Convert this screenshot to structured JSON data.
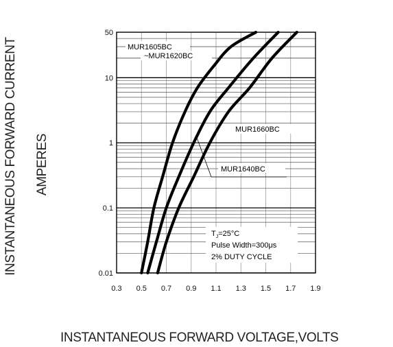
{
  "chart_data": {
    "type": "line",
    "xlabel": "INSTANTANEOUS FORWARD VOLTAGE,VOLTS",
    "ylabel_line1": "INSTANTANEOUS FORWARD CURRENT",
    "ylabel_line2": "AMPERES",
    "x_scale": "linear",
    "y_scale": "log",
    "xlim": [
      0.3,
      1.9
    ],
    "ylim": [
      0.01,
      50
    ],
    "x_ticks": [
      "0.3",
      "0.5",
      "0.7",
      "0.9",
      "1.1",
      "1.3",
      "1.5",
      "1.7",
      "1.9"
    ],
    "y_ticks": [
      "0.01",
      "0.1",
      "1",
      "10",
      "50"
    ],
    "grid": true,
    "series": [
      {
        "name": "MUR1605BC\n~MUR1620BC",
        "x": [
          0.5,
          0.55,
          0.6,
          0.67,
          0.75,
          0.85,
          0.95,
          1.08,
          1.22,
          1.42
        ],
        "y": [
          0.01,
          0.03,
          0.1,
          0.3,
          1,
          3,
          7,
          15,
          30,
          50
        ]
      },
      {
        "name": "MUR1640BC",
        "x": [
          0.55,
          0.62,
          0.7,
          0.8,
          0.92,
          1.05,
          1.2,
          1.4,
          1.6
        ],
        "y": [
          0.01,
          0.03,
          0.1,
          0.3,
          1,
          3,
          7,
          20,
          50
        ]
      },
      {
        "name": "MUR1660BC",
        "x": [
          0.63,
          0.7,
          0.8,
          0.92,
          1.05,
          1.2,
          1.37,
          1.55,
          1.75
        ],
        "y": [
          0.01,
          0.03,
          0.1,
          0.3,
          1,
          3,
          7,
          20,
          50
        ]
      }
    ],
    "annotations": {
      "tj": "T",
      "tj_sub": "J",
      "tj_rest": "=25°C",
      "pulse": "Pulse Width=300μs",
      "duty": "2% DUTY CYCLE"
    }
  }
}
